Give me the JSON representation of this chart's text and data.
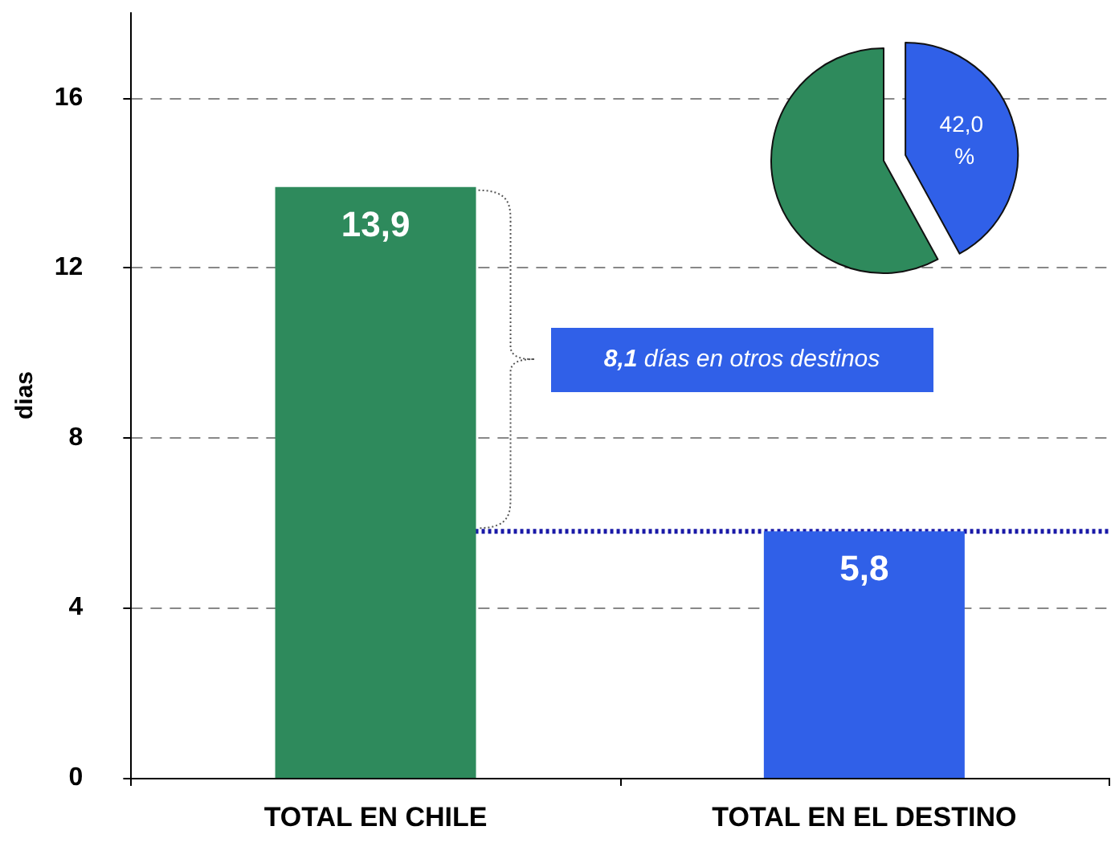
{
  "chart_data": [
    {
      "type": "bar",
      "ylabel": "dias",
      "categories": [
        "TOTAL EN CHILE",
        "TOTAL EN EL DESTINO"
      ],
      "values": [
        13.9,
        5.8
      ],
      "colors": [
        "#2e8a5c",
        "#3060e8"
      ],
      "value_labels": [
        "13,9",
        "5,8"
      ],
      "ylim": [
        0,
        18
      ],
      "yticks": [
        0,
        4,
        8,
        12,
        16
      ],
      "grid": "y",
      "ref_lines": [
        {
          "axis": "y",
          "value": 5.8,
          "color": "#1a1aa8",
          "line_style": "dotted"
        }
      ],
      "annotations": [
        "8,1 días en otros destinos"
      ]
    },
    {
      "type": "pie",
      "categories": [
        null,
        null
      ],
      "values": [
        42,
        58
      ],
      "colors": [
        "#3060e8",
        "#2e8a5c"
      ],
      "value_labels": [
        "42,0 %",
        null
      ]
    }
  ]
}
